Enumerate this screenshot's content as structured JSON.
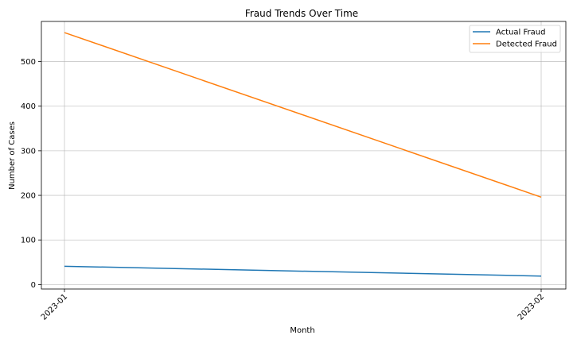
{
  "chart_data": {
    "type": "line",
    "title": "Fraud Trends Over Time",
    "xlabel": "Month",
    "ylabel": "Number of Cases",
    "x": [
      "2023-01",
      "2023-02"
    ],
    "ylim": [
      -10,
      590
    ],
    "yticks": [
      0,
      100,
      200,
      300,
      400,
      500
    ],
    "grid": true,
    "legend_position": "top-right",
    "series": [
      {
        "name": "Actual Fraud",
        "values": [
          41,
          19
        ],
        "color": "#1f77b4"
      },
      {
        "name": "Detected Fraud",
        "values": [
          565,
          196
        ],
        "color": "#ff7f0e"
      }
    ]
  }
}
